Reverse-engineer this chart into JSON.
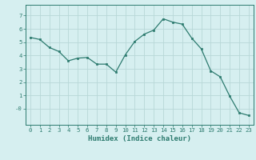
{
  "x": [
    0,
    1,
    2,
    3,
    4,
    5,
    6,
    7,
    8,
    9,
    10,
    11,
    12,
    13,
    14,
    15,
    16,
    17,
    18,
    19,
    20,
    21,
    22,
    23
  ],
  "y": [
    5.35,
    5.2,
    4.6,
    4.3,
    3.6,
    3.8,
    3.85,
    3.35,
    3.35,
    2.75,
    4.05,
    5.05,
    5.6,
    5.9,
    6.75,
    6.5,
    6.35,
    5.3,
    4.5,
    2.85,
    2.4,
    0.95,
    -0.3,
    -0.5
  ],
  "line_color": "#2d7b6f",
  "marker": "s",
  "marker_size": 2.0,
  "bg_color": "#d6eff0",
  "grid_color": "#b8d8d8",
  "xlabel": "Humidex (Indice chaleur)",
  "xlim": [
    -0.5,
    23.5
  ],
  "ylim": [
    -1.2,
    7.8
  ],
  "yticks": [
    0,
    1,
    2,
    3,
    4,
    5,
    6,
    7
  ],
  "ytick_labels": [
    "-0",
    "1",
    "2",
    "3",
    "4",
    "5",
    "6",
    "7"
  ],
  "xticks": [
    0,
    1,
    2,
    3,
    4,
    5,
    6,
    7,
    8,
    9,
    10,
    11,
    12,
    13,
    14,
    15,
    16,
    17,
    18,
    19,
    20,
    21,
    22,
    23
  ],
  "axis_color": "#2d7b6f",
  "tick_color": "#2d7b6f",
  "label_color": "#2d7b6f",
  "tick_fontsize": 5.2,
  "label_fontsize": 6.5
}
